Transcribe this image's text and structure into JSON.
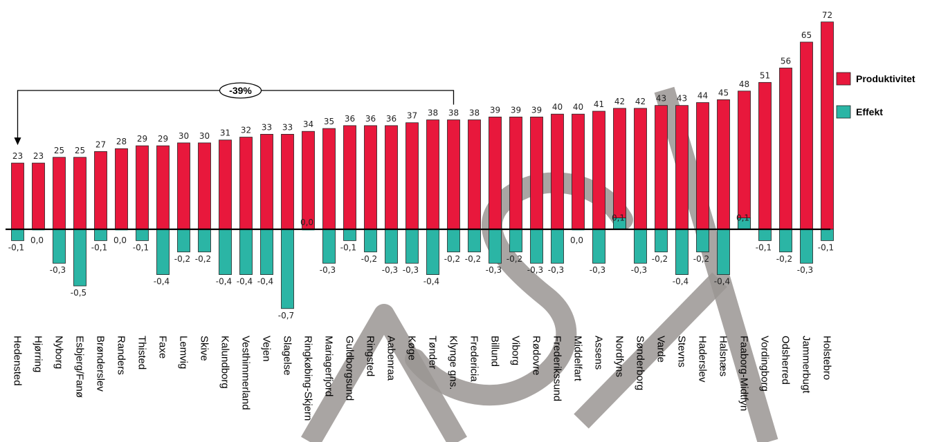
{
  "chart_data": {
    "type": "bar",
    "title": "",
    "xlabel": "",
    "ylabel": "",
    "categories": [
      "Hedensted",
      "Hjørring",
      "Nyborg",
      "Esbjerg/Fanø",
      "Brønderslev",
      "Randers",
      "Thisted",
      "Faxe",
      "Lemvig",
      "Skive",
      "Kalundborg",
      "Vesthimmerland",
      "Vejen",
      "Slagelse",
      "Ringkøbing-Skjern",
      "Mariagerfjord",
      "Guldborgsund",
      "Ringsted",
      "Aabenraa",
      "Køge",
      "Tønder",
      "Klynge gns.",
      "Fredericia",
      "Billund",
      "Viborg",
      "Rødovre",
      "Frederikssund",
      "Middelfart",
      "Assens",
      "Nordfyns",
      "Sønderborg",
      "Varde",
      "Stevns",
      "Haderslev",
      "Halsnæs",
      "Faaborg-Midtfyn",
      "Vordingborg",
      "Odsherred",
      "Jammerbugt",
      "Holstebro"
    ],
    "series": [
      {
        "name": "Produktivitet",
        "color": "#E8183C",
        "values": [
          23,
          23,
          25,
          25,
          27,
          28,
          29,
          29,
          30,
          30,
          31,
          32,
          33,
          33,
          34,
          35,
          36,
          36,
          36,
          37,
          38,
          38,
          38,
          39,
          39,
          39,
          40,
          40,
          41,
          42,
          42,
          43,
          43,
          44,
          45,
          48,
          51,
          56,
          65,
          72
        ],
        "labels": [
          "23",
          "23",
          "25",
          "25",
          "27",
          "28",
          "29",
          "29",
          "30",
          "30",
          "31",
          "32",
          "33",
          "33",
          "34",
          "35",
          "36",
          "36",
          "36",
          "37",
          "38",
          "38",
          "38",
          "39",
          "39",
          "39",
          "40",
          "40",
          "41",
          "42",
          "42",
          "43",
          "43",
          "44",
          "45",
          "48",
          "51",
          "56",
          "65",
          "72"
        ]
      },
      {
        "name": "Effekt",
        "color": "#2BB5A5",
        "values": [
          -0.1,
          0.0,
          -0.3,
          -0.5,
          -0.1,
          0.0,
          -0.1,
          -0.4,
          -0.2,
          -0.2,
          -0.4,
          -0.4,
          -0.4,
          -0.7,
          0.0,
          -0.3,
          -0.1,
          -0.2,
          -0.3,
          -0.3,
          -0.4,
          -0.2,
          -0.2,
          -0.3,
          -0.2,
          -0.3,
          -0.3,
          0.0,
          -0.3,
          0.1,
          -0.3,
          -0.2,
          -0.4,
          -0.2,
          -0.4,
          0.1,
          -0.1,
          -0.2,
          -0.3,
          -0.1
        ],
        "labels": [
          "-0,1",
          "0,0",
          "-0,3",
          "-0,5",
          "-0,1",
          "0,0",
          "-0,1",
          "-0,4",
          "-0,2",
          "-0,2",
          "-0,4",
          "-0,4",
          "-0,4",
          "-0,7",
          "0,0",
          "-0,3",
          "-0,1",
          "-0,2",
          "-0,3",
          "-0,3",
          "-0,4",
          "-0,2",
          "-0,2",
          "-0,3",
          "-0,2",
          "-0,3",
          "-0,3",
          "0,0",
          "-0,3",
          "0,1",
          "-0,3",
          "-0,2",
          "-0,4",
          "-0,2",
          "-0,4",
          "0,1",
          "-0,1",
          "-0,2",
          "-0,3",
          "-0,1"
        ]
      }
    ],
    "legend": {
      "placement": "right",
      "entries": [
        "Produktivitet",
        "Effekt"
      ]
    },
    "annotation": {
      "text": "-39%",
      "from_category": "Klynge gns.",
      "to_category": "Hedensted"
    },
    "grid": false,
    "zero_line": true,
    "watermark_text": "ASK"
  }
}
